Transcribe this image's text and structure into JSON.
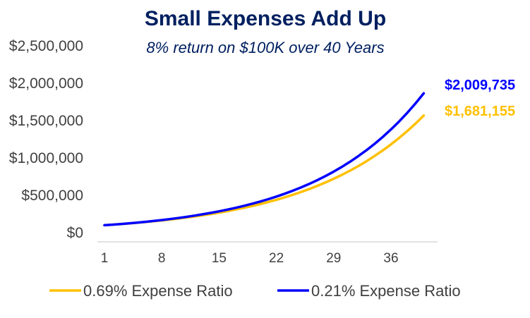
{
  "chart_data": {
    "type": "line",
    "title": "Small Expenses Add Up",
    "subtitle": "8% return on $100K over 40 Years",
    "xlabel": "",
    "ylabel": "",
    "x_start": 1,
    "x_end": 40,
    "x_ticks": [
      "1",
      "8",
      "15",
      "22",
      "29",
      "36"
    ],
    "x_tick_values": [
      1,
      8,
      15,
      22,
      29,
      36
    ],
    "y_ticks": [
      "$0",
      "$500,000",
      "$1,000,000",
      "$1,500,000",
      "$2,000,000",
      "$2,500,000"
    ],
    "y_tick_values": [
      0,
      500000,
      1000000,
      1500000,
      2000000,
      2500000
    ],
    "ylim": [
      0,
      2500000
    ],
    "grid": false,
    "legend_position": "bottom",
    "principal": 100000,
    "gross_return": 0.08,
    "series": [
      {
        "name": "0.69% Expense Ratio",
        "expense_ratio": 0.0069,
        "color": "#FFC000",
        "end_value": 1681155,
        "end_label": "$1,681,155"
      },
      {
        "name": "0.21% Expense Ratio",
        "expense_ratio": 0.0021,
        "color": "#0000FF",
        "end_value": 2009735,
        "end_label": "$2,009,735"
      }
    ]
  },
  "colors": {
    "title": "#002060",
    "axis_text": "#404040",
    "axis_line": "#D9D9D9"
  }
}
